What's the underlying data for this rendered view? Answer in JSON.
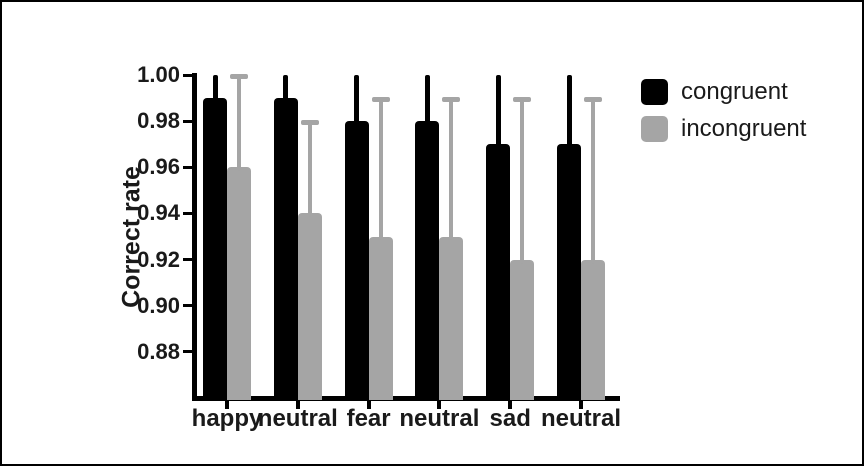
{
  "figure": {
    "background": "#ffffff",
    "frame_color": "#000000"
  },
  "chart_data": {
    "type": "bar",
    "title": "",
    "xlabel": "",
    "ylabel": "Correct rate",
    "categories": [
      "happy",
      "neutral",
      "fear",
      "neutral",
      "sad",
      "neutral"
    ],
    "series": [
      {
        "name": "congruent",
        "color": "#000000",
        "values": [
          0.99,
          0.99,
          0.98,
          0.98,
          0.97,
          0.97
        ],
        "errors_up": [
          0.01,
          0.01,
          0.02,
          0.02,
          0.03,
          0.03
        ],
        "error_caps": false
      },
      {
        "name": "incongruent",
        "color": "#a5a5a5",
        "values": [
          0.96,
          0.94,
          0.93,
          0.93,
          0.92,
          0.92
        ],
        "errors_up": [
          0.04,
          0.04,
          0.06,
          0.06,
          0.07,
          0.07
        ],
        "error_caps": true
      }
    ],
    "ylim": [
      0.86,
      1.0
    ],
    "yticks": [
      1.0,
      0.98,
      0.96,
      0.94,
      0.92,
      0.9,
      0.88
    ],
    "ytick_labels": [
      "1.00",
      "0.98",
      "0.96",
      "0.94",
      "0.92",
      "0.90",
      "0.88"
    ],
    "grid": false,
    "legend_position": "right"
  },
  "legend": {
    "items": [
      {
        "label": "congruent",
        "swatch_color": "#000000"
      },
      {
        "label": "incongruent",
        "swatch_color": "#a5a5a5"
      }
    ]
  }
}
